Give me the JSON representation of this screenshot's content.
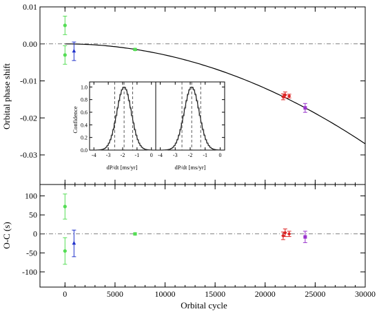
{
  "chart_data": [
    {
      "panel": "top",
      "type": "scatter",
      "xlabel": "",
      "ylabel": "Orbital phase shift",
      "xlim": [
        -2500,
        30000
      ],
      "ylim": [
        -0.038,
        0.01
      ],
      "x_ticks": [
        0,
        5000,
        10000,
        15000,
        20000,
        25000,
        30000
      ],
      "y_ticks": [
        0.01,
        0.0,
        -0.01,
        -0.02,
        -0.03
      ],
      "y_tick_labels": [
        "0.01",
        "0.00",
        "-0.01",
        "-0.02",
        "-0.03"
      ],
      "reference_line": {
        "y": 0,
        "style": "dash-dot"
      },
      "fit_curve": {
        "model": "quadratic",
        "coeff": -3e-11,
        "x_range": [
          0,
          30000
        ]
      },
      "series": [
        {
          "marker": "circle",
          "color": "#55dd55",
          "points": [
            {
              "x": 0,
              "y": 0.005,
              "err": 0.0025
            },
            {
              "x": 0,
              "y": -0.003,
              "err": 0.0025
            },
            {
              "x": 7000,
              "y": -0.0015,
              "err": 0.0003
            }
          ]
        },
        {
          "marker": "triangle",
          "color": "#2233cc",
          "points": [
            {
              "x": 900,
              "y": -0.002,
              "err": 0.0025
            }
          ]
        },
        {
          "marker": "diamond",
          "color": "#dd2222",
          "points": [
            {
              "x": 21800,
              "y": -0.0143,
              "err": 0.0008
            },
            {
              "x": 22000,
              "y": -0.0138,
              "err": 0.0008
            },
            {
              "x": 22400,
              "y": -0.0141,
              "err": 0.0005
            }
          ]
        },
        {
          "marker": "square",
          "color": "#9933cc",
          "points": [
            {
              "x": 24000,
              "y": -0.0173,
              "err": 0.0012
            }
          ]
        }
      ]
    },
    {
      "panel": "inset",
      "type": "histogram",
      "ylabel": "Confidence",
      "xlabel": "dP/dt [ms/yr]",
      "xlim": [
        -4.3,
        0.3
      ],
      "ylim": [
        0,
        1.08
      ],
      "x_ticks": [
        -4,
        -3,
        -2,
        -1,
        0
      ],
      "y_ticks": [
        0.0,
        0.2,
        0.4,
        0.6,
        0.8,
        1.0
      ],
      "y_tick_labels": [
        "0.0",
        "0.2",
        "0.4",
        "0.6",
        "0.8",
        "1.0"
      ],
      "subpanels": [
        {
          "center": -1.9,
          "sigma": 0.5,
          "dashed_lines": [
            -2.55,
            -1.9,
            -1.3
          ]
        },
        {
          "center": -1.9,
          "sigma": 0.5,
          "dashed_lines": [
            -2.55,
            -1.9,
            -1.3
          ]
        }
      ]
    },
    {
      "panel": "bottom",
      "type": "scatter",
      "xlabel": "Orbital cycle",
      "ylabel": "O-C (s)",
      "xlim": [
        -2500,
        30000
      ],
      "ylim": [
        -140,
        130
      ],
      "x_ticks": [
        0,
        5000,
        10000,
        15000,
        20000,
        25000,
        30000
      ],
      "y_ticks": [
        100,
        50,
        0,
        -50,
        -100
      ],
      "y_tick_labels": [
        "100",
        "50",
        "0",
        "-50",
        "-100"
      ],
      "reference_line": {
        "y": 0,
        "style": "dash-dot"
      },
      "series": [
        {
          "marker": "circle",
          "color": "#55dd55",
          "points": [
            {
              "x": 0,
              "y": 72,
              "err": 33
            },
            {
              "x": 0,
              "y": -45,
              "err": 35
            },
            {
              "x": 7000,
              "y": 0,
              "err": 3
            }
          ]
        },
        {
          "marker": "triangle",
          "color": "#2233cc",
          "points": [
            {
              "x": 900,
              "y": -25,
              "err": 35
            }
          ]
        },
        {
          "marker": "diamond",
          "color": "#dd2222",
          "points": [
            {
              "x": 21800,
              "y": -5,
              "err": 10
            },
            {
              "x": 22000,
              "y": 3,
              "err": 10
            },
            {
              "x": 22400,
              "y": 0,
              "err": 7
            }
          ]
        },
        {
          "marker": "square",
          "color": "#9933cc",
          "points": [
            {
              "x": 24000,
              "y": -8,
              "err": 15
            }
          ]
        }
      ]
    }
  ]
}
